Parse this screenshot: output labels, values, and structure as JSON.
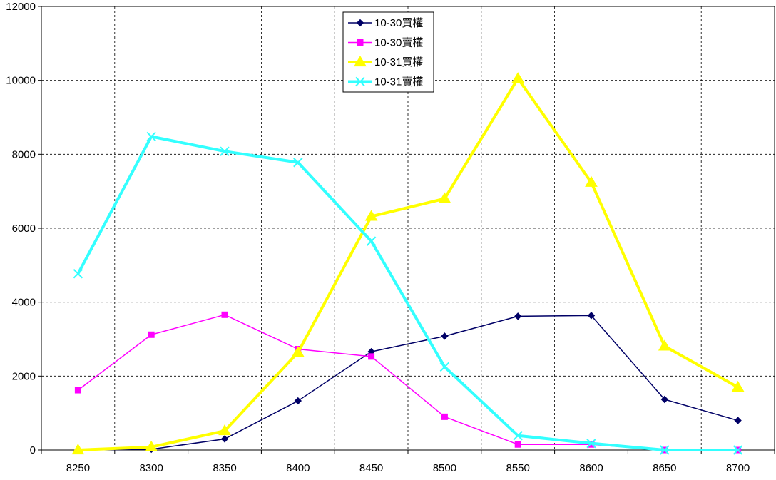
{
  "chart_data": {
    "type": "line",
    "title": "",
    "xlabel": "",
    "ylabel": "",
    "categories": [
      "8250",
      "8300",
      "8350",
      "8400",
      "8450",
      "8500",
      "8550",
      "8600",
      "8650",
      "8700"
    ],
    "ylim": [
      0,
      12000
    ],
    "y_ticks": [
      0,
      2000,
      4000,
      6000,
      8000,
      10000,
      12000
    ],
    "grid": "dashed",
    "legend_position": "top-center",
    "series": [
      {
        "name": "10-30買權",
        "color": "#000066",
        "marker": "diamond",
        "values": [
          0,
          20,
          300,
          1330,
          2660,
          3080,
          3620,
          3640,
          1370,
          800
        ]
      },
      {
        "name": "10-30賣權",
        "color": "#FF00FF",
        "marker": "square",
        "values": [
          1620,
          3120,
          3660,
          2730,
          2530,
          900,
          150,
          150,
          0,
          0
        ]
      },
      {
        "name": "10-31買權",
        "color": "#FFFF00",
        "marker": "triangle",
        "values": [
          0,
          80,
          520,
          2640,
          6320,
          6800,
          10050,
          7240,
          2810,
          1700
        ]
      },
      {
        "name": "10-31賣權",
        "color": "#33FFFF",
        "marker": "x",
        "values": [
          4770,
          8480,
          8080,
          7780,
          5650,
          2250,
          390,
          180,
          0,
          0
        ]
      }
    ]
  }
}
